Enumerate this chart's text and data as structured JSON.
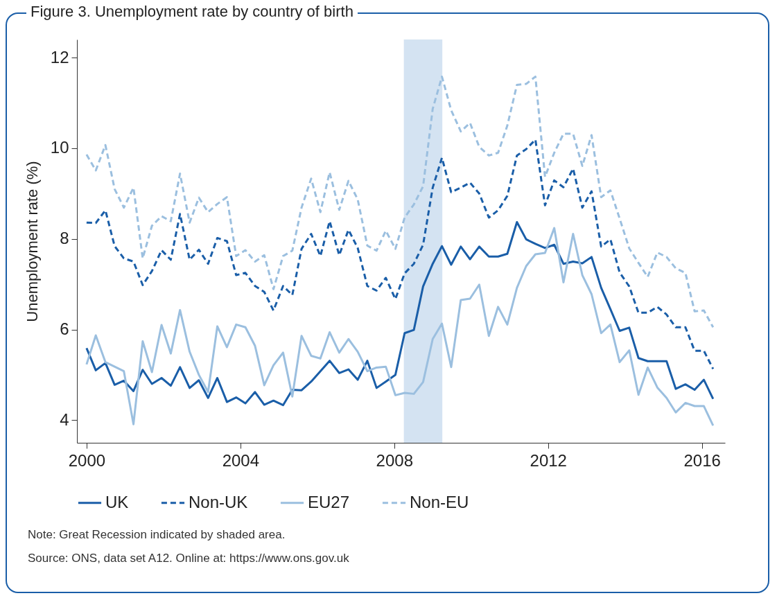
{
  "chart_data": {
    "type": "line",
    "title": "Figure 3. Unemployment rate by country of birth",
    "ylabel": "Unemployment rate (%)",
    "x": [
      2000,
      2000.24,
      2000.49,
      2000.73,
      2000.97,
      2001.22,
      2001.46,
      2001.7,
      2001.95,
      2002.19,
      2002.43,
      2002.68,
      2002.92,
      2003.16,
      2003.4,
      2003.65,
      2003.89,
      2004.13,
      2004.38,
      2004.62,
      2004.86,
      2005.11,
      2005.35,
      2005.59,
      2005.84,
      2006.08,
      2006.32,
      2006.57,
      2006.81,
      2007.05,
      2007.3,
      2007.54,
      2007.78,
      2008.03,
      2008.27,
      2008.51,
      2008.75,
      2009,
      2009.24,
      2009.48,
      2009.73,
      2009.97,
      2010.21,
      2010.46,
      2010.7,
      2010.94,
      2011.19,
      2011.43,
      2011.67,
      2011.92,
      2012.16,
      2012.4,
      2012.65,
      2012.89,
      2013.13,
      2013.38,
      2013.62,
      2013.86,
      2014.11,
      2014.35,
      2014.59,
      2014.84,
      2015.08,
      2015.32,
      2015.57,
      2015.81,
      2016.05,
      2016.29
    ],
    "series": [
      {
        "name": "UK",
        "color": "#1a5ea8",
        "line_style": "solid",
        "values": [
          5.59,
          5.1,
          5.26,
          4.78,
          4.87,
          4.64,
          5.11,
          4.8,
          4.93,
          4.76,
          5.17,
          4.71,
          4.88,
          4.49,
          4.93,
          4.4,
          4.5,
          4.37,
          4.62,
          4.34,
          4.43,
          4.33,
          4.67,
          4.66,
          4.85,
          5.08,
          5.31,
          5.04,
          5.12,
          4.89,
          5.31,
          4.71,
          4.85,
          5.0,
          5.92,
          5.99,
          6.95,
          7.45,
          7.84,
          7.43,
          7.83,
          7.55,
          7.83,
          7.61,
          7.61,
          7.67,
          8.37,
          7.99,
          7.89,
          7.8,
          7.87,
          7.45,
          7.5,
          7.46,
          7.6,
          6.92,
          6.45,
          5.97,
          6.04,
          5.37,
          5.3,
          5.3,
          5.3,
          4.69,
          4.79,
          4.67,
          4.89,
          4.47
        ]
      },
      {
        "name": "Non-UK",
        "color": "#1a5ea8",
        "line_style": "dashed",
        "values": [
          8.36,
          8.35,
          8.63,
          7.84,
          7.57,
          7.5,
          6.98,
          7.29,
          7.75,
          7.54,
          8.55,
          7.54,
          7.76,
          7.45,
          8.02,
          7.95,
          7.2,
          7.25,
          6.96,
          6.83,
          6.42,
          6.96,
          6.76,
          7.78,
          8.11,
          7.62,
          8.39,
          7.64,
          8.2,
          7.8,
          6.96,
          6.86,
          7.14,
          6.67,
          7.24,
          7.45,
          7.87,
          9.13,
          9.79,
          9.03,
          9.13,
          9.24,
          9.0,
          8.47,
          8.63,
          8.95,
          9.84,
          9.98,
          10.19,
          8.74,
          9.29,
          9.14,
          9.55,
          8.69,
          9.05,
          7.83,
          7.99,
          7.26,
          6.95,
          6.37,
          6.37,
          6.5,
          6.33,
          6.05,
          6.05,
          5.53,
          5.53,
          5.13
        ]
      },
      {
        "name": "EU27",
        "color": "#9bbfdf",
        "line_style": "solid",
        "values": [
          5.23,
          5.87,
          5.28,
          5.18,
          5.08,
          3.91,
          5.74,
          5.06,
          6.1,
          5.47,
          6.43,
          5.51,
          5.0,
          4.62,
          6.07,
          5.61,
          6.11,
          6.05,
          5.64,
          4.77,
          5.21,
          5.49,
          4.52,
          5.86,
          5.42,
          5.36,
          5.94,
          5.49,
          5.79,
          5.51,
          5.08,
          5.16,
          5.18,
          4.55,
          4.6,
          4.58,
          4.84,
          5.79,
          6.13,
          5.17,
          6.65,
          6.68,
          6.99,
          5.86,
          6.5,
          6.11,
          6.92,
          7.4,
          7.66,
          7.69,
          8.24,
          7.04,
          8.11,
          7.2,
          6.78,
          5.92,
          6.11,
          5.28,
          5.54,
          4.56,
          5.16,
          4.72,
          4.49,
          4.17,
          4.38,
          4.31,
          4.31,
          3.88
        ]
      },
      {
        "name": "Non-EU",
        "color": "#9bbfdf",
        "line_style": "dashed",
        "values": [
          9.86,
          9.51,
          10.07,
          9.1,
          8.69,
          9.13,
          7.57,
          8.29,
          8.5,
          8.39,
          9.44,
          8.36,
          8.91,
          8.59,
          8.77,
          8.92,
          7.62,
          7.75,
          7.5,
          7.64,
          6.89,
          7.62,
          7.74,
          8.69,
          9.33,
          8.59,
          9.47,
          8.64,
          9.28,
          8.87,
          7.85,
          7.74,
          8.18,
          7.78,
          8.47,
          8.76,
          9.16,
          10.87,
          11.58,
          10.84,
          10.37,
          10.56,
          10.03,
          9.84,
          9.9,
          10.5,
          11.4,
          11.42,
          11.58,
          9.37,
          9.9,
          10.32,
          10.32,
          9.61,
          10.29,
          8.92,
          9.07,
          8.45,
          7.79,
          7.47,
          7.16,
          7.7,
          7.6,
          7.35,
          7.25,
          6.4,
          6.42,
          6.05
        ]
      }
    ],
    "xlim": [
      1999.75,
      2016.6
    ],
    "xticks": [
      2000,
      2004,
      2008,
      2012,
      2016
    ],
    "ylim": [
      3.5,
      12.4
    ],
    "yticks": [
      4,
      6,
      8,
      10,
      12
    ],
    "bands": [
      {
        "axis": "x",
        "from": 2008.25,
        "to": 2009.25,
        "color": "#c9dcef"
      }
    ],
    "grid": false,
    "legend": "bottom",
    "annotations": [
      "Note: Great Recession indicated by shaded area.",
      "Source: ONS, data set A12. Online at: https://www.ons.gov.uk"
    ]
  }
}
